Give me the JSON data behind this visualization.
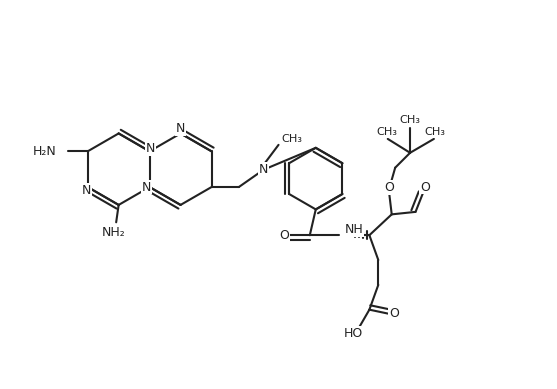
{
  "bg_color": "#ffffff",
  "line_color": "#222222",
  "line_width": 1.5,
  "font_size": 9.0,
  "figsize": [
    5.57,
    3.89
  ],
  "dpi": 100,
  "xlim": [
    0,
    11.14
  ],
  "ylim": [
    0,
    7.78
  ]
}
